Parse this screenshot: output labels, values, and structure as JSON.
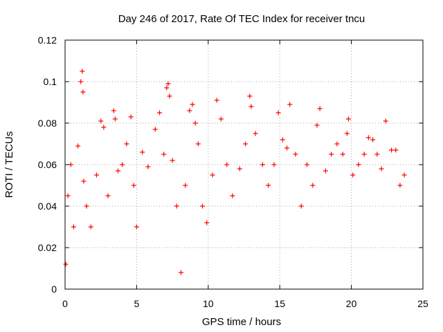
{
  "chart_data": {
    "type": "scatter",
    "title": "Day 246 of 2017, Rate Of TEC Index for receiver tncu",
    "xlabel": "GPS time / hours",
    "ylabel": "ROTI / TECUs",
    "xlim": [
      0,
      25
    ],
    "ylim": [
      0,
      0.12
    ],
    "x_ticks": [
      "0",
      "5",
      "10",
      "15",
      "20",
      "25"
    ],
    "y_ticks": [
      "0",
      "0.02",
      "0.04",
      "0.06",
      "0.08",
      "0.1",
      "0.12"
    ],
    "grid": true,
    "marker": "plus",
    "color": "#ff0000",
    "series": [
      {
        "x": [
          0.05,
          0.2,
          0.4,
          0.6,
          0.9,
          1.1,
          1.2,
          1.25,
          1.3,
          1.5,
          1.8,
          2.2,
          2.5,
          2.7,
          3.0,
          3.4,
          3.5,
          3.7,
          4.0,
          4.3,
          4.6,
          4.8,
          5.0,
          5.4,
          5.8,
          6.3,
          6.6,
          6.9,
          7.1,
          7.2,
          7.3,
          7.5,
          7.8,
          8.1,
          8.4,
          8.7,
          8.9,
          9.1,
          9.3,
          9.6,
          9.9,
          10.3,
          10.6,
          10.9,
          11.3,
          11.7,
          12.2,
          12.6,
          12.9,
          13.0,
          13.3,
          13.8,
          14.2,
          14.6,
          14.9,
          15.2,
          15.5,
          15.7,
          16.1,
          16.5,
          16.9,
          17.3,
          17.6,
          17.8,
          18.2,
          18.6,
          19.0,
          19.4,
          19.7,
          19.8,
          20.1,
          20.5,
          20.9,
          21.2,
          21.5,
          21.8,
          22.1,
          22.4,
          22.8,
          23.1,
          23.4,
          23.7
        ],
        "y": [
          0.012,
          0.045,
          0.06,
          0.03,
          0.069,
          0.1,
          0.105,
          0.095,
          0.052,
          0.04,
          0.03,
          0.055,
          0.081,
          0.078,
          0.045,
          0.086,
          0.082,
          0.057,
          0.06,
          0.07,
          0.083,
          0.05,
          0.03,
          0.066,
          0.059,
          0.077,
          0.085,
          0.065,
          0.097,
          0.099,
          0.093,
          0.062,
          0.04,
          0.008,
          0.05,
          0.086,
          0.089,
          0.08,
          0.07,
          0.04,
          0.032,
          0.055,
          0.091,
          0.082,
          0.06,
          0.045,
          0.058,
          0.07,
          0.093,
          0.088,
          0.075,
          0.06,
          0.05,
          0.06,
          0.085,
          0.072,
          0.068,
          0.089,
          0.065,
          0.04,
          0.06,
          0.05,
          0.079,
          0.087,
          0.057,
          0.065,
          0.07,
          0.065,
          0.075,
          0.082,
          0.055,
          0.06,
          0.065,
          0.073,
          0.072,
          0.065,
          0.058,
          0.081,
          0.067,
          0.067,
          0.05,
          0.055
        ]
      }
    ]
  }
}
